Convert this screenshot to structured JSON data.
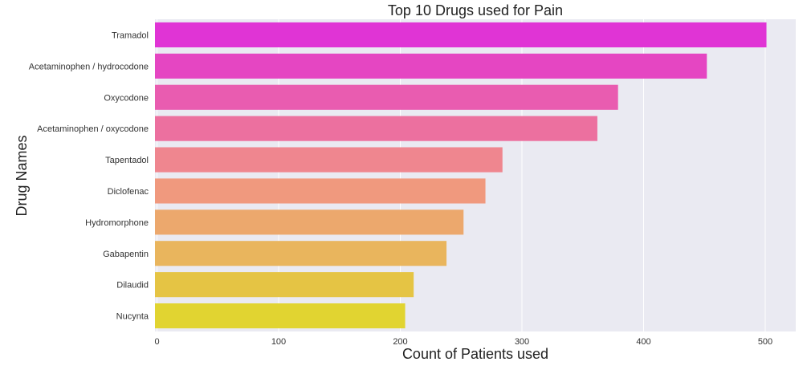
{
  "chart_data": {
    "type": "bar",
    "orientation": "horizontal",
    "title": "Top 10 Drugs used for Pain",
    "xlabel": "Count of Patients used",
    "ylabel": "Drug Names",
    "categories": [
      "Tramadol",
      "Acetaminophen / hydrocodone",
      "Oxycodone",
      "Acetaminophen / oxycodone",
      "Tapentadol",
      "Diclofenac",
      "Hydromorphone",
      "Gabapentin",
      "Dilaudid",
      "Nucynta"
    ],
    "values": [
      501,
      452,
      379,
      362,
      284,
      270,
      252,
      238,
      211,
      204
    ],
    "colors": [
      "#e034d5",
      "#e546c2",
      "#e95cb0",
      "#ec709f",
      "#ef868f",
      "#f0997e",
      "#eca86d",
      "#e9b55d",
      "#e5c444",
      "#e1d431"
    ],
    "xlim": [
      0,
      525
    ],
    "xticks": [
      0,
      100,
      200,
      300,
      400,
      500
    ],
    "grid": true,
    "background": "#eaeaf2"
  }
}
